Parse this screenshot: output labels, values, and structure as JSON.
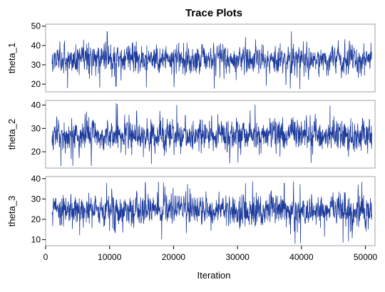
{
  "chart_data": {
    "type": "line",
    "title": "Trace Plots",
    "xlabel": "Iteration",
    "x_ticks": [
      "0",
      "10000",
      "20000",
      "30000",
      "40000",
      "50000"
    ],
    "x_tick_values": [
      0,
      10000,
      20000,
      30000,
      40000,
      50000
    ],
    "xlim": [
      0,
      51500
    ],
    "x_range_data": [
      1000,
      51000
    ],
    "series_color": "#1c3b9c",
    "frame_color": "#a0a0a0",
    "panels": [
      {
        "name": "theta_1",
        "ylabel": "theta_1",
        "ylim": [
          16,
          51
        ],
        "y_ticks": [
          "20",
          "30",
          "40",
          "50"
        ],
        "y_tick_values": [
          20,
          30,
          40,
          50
        ],
        "center": 33,
        "sd": 3.7,
        "min": 17.5,
        "max": 47.5
      },
      {
        "name": "theta_2",
        "ylabel": "theta_2",
        "ylim": [
          13,
          42
        ],
        "y_ticks": [
          "20",
          "30",
          "40"
        ],
        "y_tick_values": [
          20,
          30,
          40
        ],
        "center": 27,
        "sd": 3.3,
        "min": 14,
        "max": 41
      },
      {
        "name": "theta_3",
        "ylabel": "theta_3",
        "ylim": [
          7,
          41
        ],
        "y_ticks": [
          "10",
          "20",
          "30",
          "40"
        ],
        "y_tick_values": [
          10,
          20,
          30,
          40
        ],
        "center": 24.5,
        "sd": 3.8,
        "min": 8,
        "max": 38.5
      }
    ]
  }
}
